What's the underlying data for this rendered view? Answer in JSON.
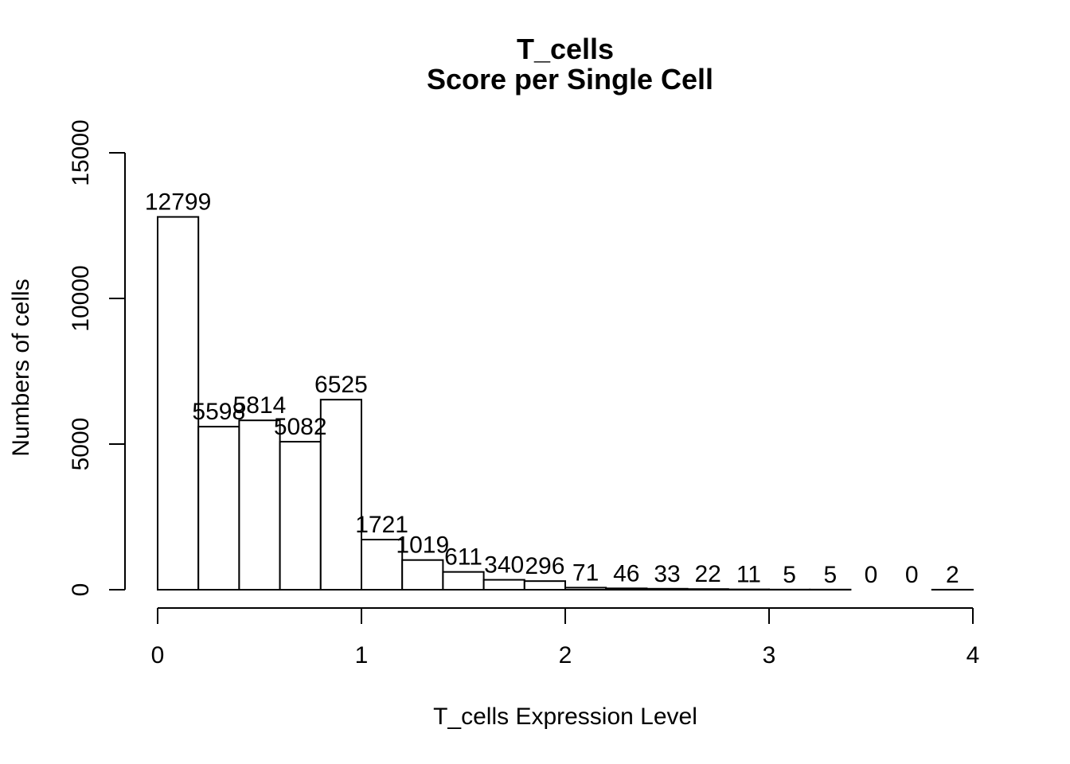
{
  "chart_data": {
    "type": "bar",
    "title": "T_cells",
    "subtitle": "Score per Single Cell",
    "xlabel": "T_cells Expression Level",
    "ylabel": "Numbers of cells",
    "bin_width": 0.2,
    "bin_starts": [
      0,
      0.2,
      0.4,
      0.6,
      0.8,
      1.0,
      1.2,
      1.4,
      1.6,
      1.8,
      2.0,
      2.2,
      2.4,
      2.6,
      2.8,
      3.0,
      3.2,
      3.4,
      3.6,
      3.8
    ],
    "values": [
      12799,
      5598,
      5814,
      5082,
      6525,
      1721,
      1019,
      611,
      340,
      296,
      71,
      46,
      33,
      22,
      11,
      5,
      5,
      0,
      0,
      2
    ],
    "xlim": [
      0,
      4
    ],
    "ylim": [
      0,
      15000
    ],
    "x_ticks": [
      "0",
      "1",
      "2",
      "3",
      "4"
    ],
    "y_ticks": [
      "0",
      "5000",
      "10000",
      "15000"
    ],
    "grid": false,
    "legend": "none"
  }
}
